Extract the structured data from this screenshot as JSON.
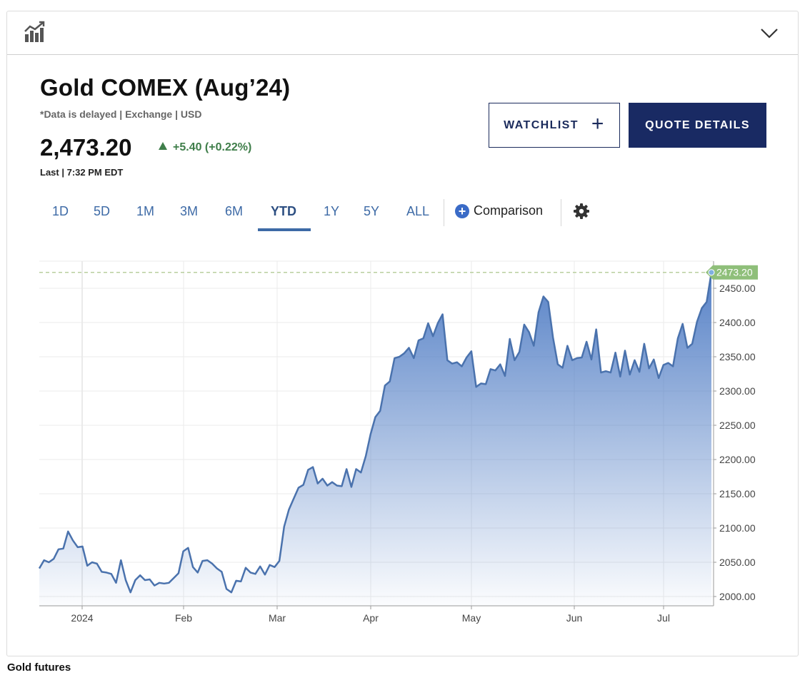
{
  "header": {
    "chart_icon": "bar-chart-trend-icon",
    "collapse_icon": "chevron-down-icon"
  },
  "instrument": {
    "title": "Gold COMEX (Aug’24)",
    "subtitle": "*Data is delayed | Exchange | USD",
    "price": "2,473.20",
    "change": "+5.40 (+0.22%)",
    "last_updated": "Last | 7:32 PM EDT",
    "change_color": "#3f7e4a"
  },
  "buttons": {
    "watchlist": "WATCHLIST",
    "quote_details": "QUOTE DETAILS"
  },
  "ranges": [
    "1D",
    "5D",
    "1M",
    "3M",
    "6M",
    "YTD",
    "1Y",
    "5Y",
    "ALL"
  ],
  "selected_range": "YTD",
  "comparison_label": "Comparison",
  "settings_icon": "gear-icon",
  "chart_data": {
    "type": "area",
    "x_tick_labels": [
      "2024",
      "Feb",
      "Mar",
      "Apr",
      "May",
      "Jun",
      "Jul"
    ],
    "y_tick_labels": [
      "2000.00",
      "2050.00",
      "2100.00",
      "2150.00",
      "2200.00",
      "2250.00",
      "2300.00",
      "2350.00",
      "2400.00",
      "2450.00"
    ],
    "ylim": [
      1985,
      2485
    ],
    "last_price_label": "2473.20",
    "last_price": 2473.2,
    "series": [
      {
        "values": [
          2041,
          2053,
          2050,
          2055,
          2069,
          2070,
          2095,
          2082,
          2072,
          2073,
          2045,
          2050,
          2048,
          2036,
          2035,
          2033,
          2020,
          2053,
          2024,
          2006,
          2024,
          2031,
          2024,
          2025,
          2016,
          2020,
          2019,
          2020,
          2027,
          2034,
          2066,
          2071,
          2043,
          2035,
          2052,
          2053,
          2048,
          2041,
          2036,
          2011,
          2006,
          2023,
          2022,
          2042,
          2035,
          2033,
          2044,
          2032,
          2046,
          2043,
          2052,
          2102,
          2127,
          2143,
          2159,
          2163,
          2185,
          2189,
          2165,
          2172,
          2162,
          2167,
          2162,
          2161,
          2186,
          2160,
          2186,
          2181,
          2205,
          2237,
          2262,
          2271,
          2308,
          2314,
          2348,
          2350,
          2355,
          2363,
          2348,
          2374,
          2377,
          2399,
          2380,
          2399,
          2412,
          2345,
          2340,
          2342,
          2336,
          2349,
          2358,
          2306,
          2311,
          2310,
          2332,
          2330,
          2339,
          2322,
          2376,
          2345,
          2357,
          2397,
          2386,
          2366,
          2415,
          2438,
          2430,
          2378,
          2339,
          2334,
          2366,
          2345,
          2348,
          2349,
          2372,
          2346,
          2390,
          2327,
          2329,
          2327,
          2356,
          2321,
          2359,
          2324,
          2345,
          2328,
          2369,
          2333,
          2346,
          2319,
          2338,
          2341,
          2336,
          2377,
          2398,
          2363,
          2369,
          2401,
          2421,
          2430,
          2473.2
        ]
      }
    ]
  },
  "footer_caption": "Gold futures",
  "colors": {
    "line": "#4a72ad",
    "brand_navy": "#192a63",
    "tab_blue": "#3d6aa6",
    "price_tag": "#8fbf7a"
  }
}
